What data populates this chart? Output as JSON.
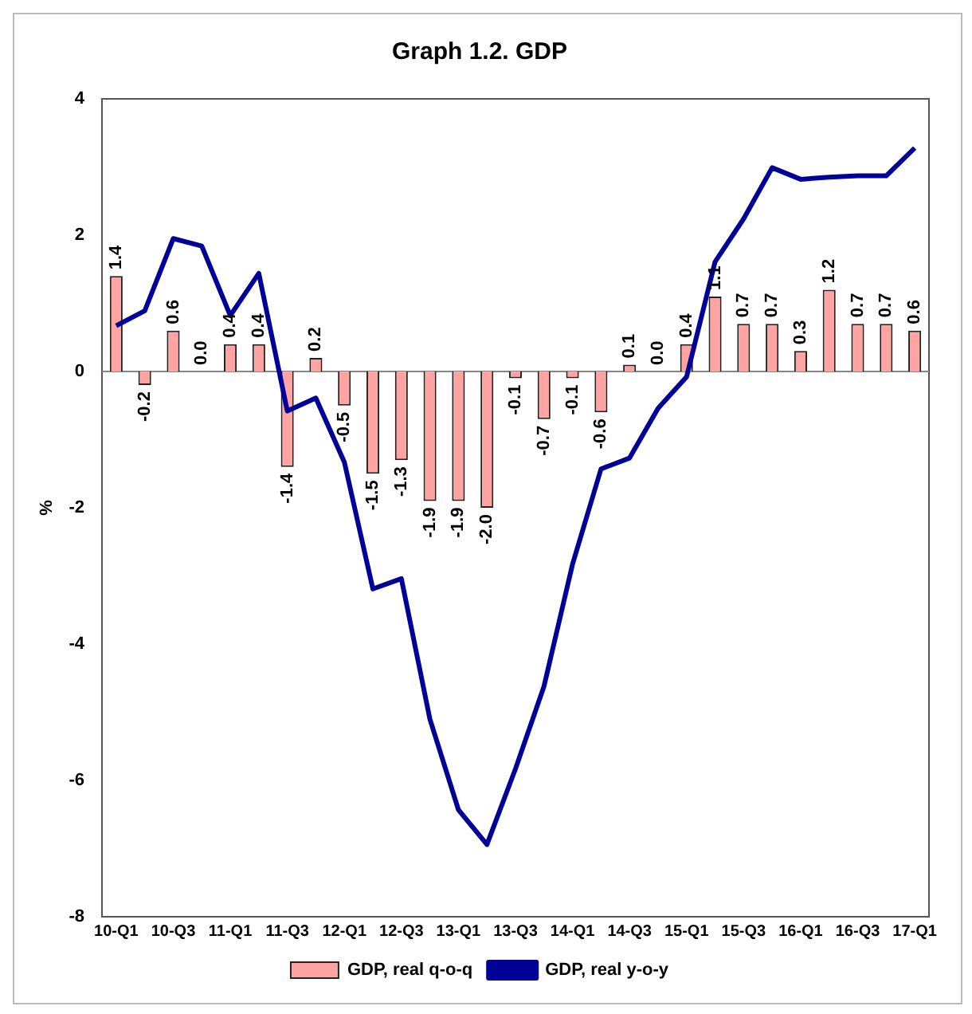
{
  "chart_data": {
    "type": "bar",
    "title": "Graph 1.2. GDP",
    "ylabel": "%",
    "categories": [
      "10-Q1",
      null,
      "10-Q3",
      null,
      "11-Q1",
      null,
      "11-Q3",
      null,
      "12-Q1",
      null,
      "12-Q3",
      null,
      "13-Q1",
      null,
      "13-Q3",
      null,
      "14-Q1",
      null,
      "14-Q3",
      null,
      "15-Q1",
      null,
      "15-Q3",
      null,
      "16-Q1",
      null,
      "16-Q3",
      null,
      "17-Q1"
    ],
    "series": [
      {
        "name": "GDP, real q-o-q",
        "color": "#ffa3a3",
        "values": [
          1.4,
          -0.2,
          0.6,
          0.0,
          0.4,
          0.4,
          -1.4,
          0.2,
          -0.5,
          -1.5,
          -1.3,
          -1.9,
          -1.9,
          -2.0,
          -0.1,
          -0.7,
          -0.1,
          -0.6,
          0.1,
          0.0,
          0.4,
          1.1,
          0.7,
          0.7,
          0.3,
          1.2,
          0.7,
          0.7,
          0.6
        ],
        "value_labels": [
          "1.4",
          "-0.2",
          "0.6",
          "0.0",
          "0.4",
          "0.4",
          "-1.4",
          "0.2",
          "-0.5",
          "-1.5",
          "-1.3",
          "-1.9",
          "-1.9",
          "-2.0",
          "-0.1",
          "-0.7",
          "-0.1",
          "-0.6",
          "0.1",
          "0.0",
          "0.4",
          "1.1",
          "0.7",
          "0.7",
          "0.3",
          "1.2",
          "0.7",
          "0.7",
          "0.6"
        ]
      },
      {
        "name": "GDP, real y-o-y",
        "type": "line",
        "color": "#000099",
        "values": [
          0.67,
          0.89,
          1.95,
          1.84,
          0.82,
          1.44,
          -0.58,
          -0.39,
          -1.33,
          -3.19,
          -3.04,
          -5.1,
          -6.43,
          -6.94,
          -5.83,
          -4.62,
          -2.83,
          -1.43,
          -1.27,
          -0.54,
          -0.08,
          1.61,
          2.24,
          2.99,
          2.82,
          2.85,
          2.87,
          2.87,
          3.28
        ]
      }
    ],
    "ylim": [
      -8,
      4
    ],
    "yticks": [
      -8,
      -6,
      -4,
      -2,
      0,
      2,
      4
    ],
    "grid": false,
    "ref_lines": [
      {
        "axis": "y",
        "value": 0,
        "color": "#888888"
      }
    ],
    "legend": "bottom",
    "marker": "none"
  }
}
